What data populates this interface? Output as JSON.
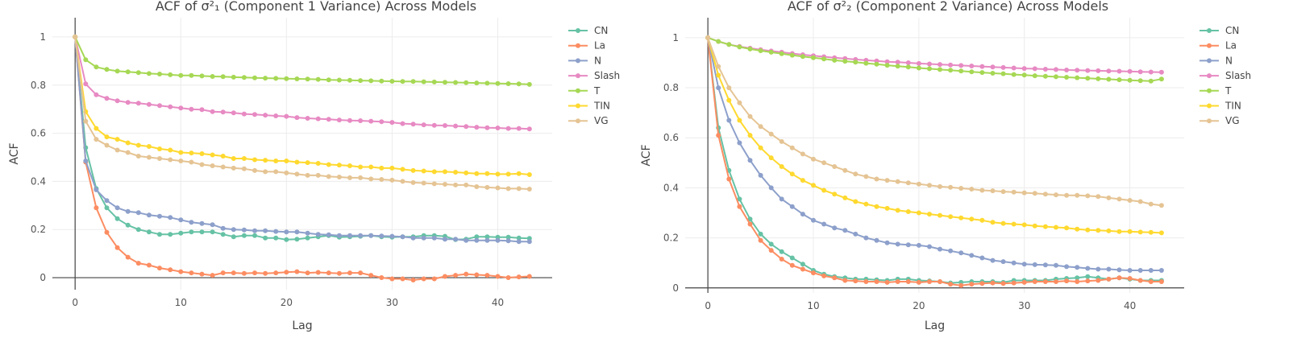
{
  "chart_data": [
    {
      "type": "line",
      "title": "ACF of σ²₁ (Component 1 Variance) Across Models",
      "xlabel": "Lag",
      "ylabel": "ACF",
      "xlim": [
        -2.15,
        45.15
      ],
      "ylim": [
        -0.05,
        1.08
      ],
      "x_ticks": [
        0,
        10,
        20,
        30,
        40
      ],
      "y_ticks": [
        0,
        0.2,
        0.4,
        0.6,
        0.8,
        1
      ],
      "y_tick_labels": [
        "0",
        "0.2",
        "0.4",
        "0.6",
        "0.8",
        "1"
      ],
      "grid": true,
      "legend_position": "right",
      "x": [
        0,
        1,
        2,
        3,
        4,
        5,
        6,
        7,
        8,
        9,
        10,
        11,
        12,
        13,
        14,
        15,
        16,
        17,
        18,
        19,
        20,
        21,
        22,
        23,
        24,
        25,
        26,
        27,
        28,
        29,
        30,
        31,
        32,
        33,
        34,
        35,
        36,
        37,
        38,
        39,
        40,
        41,
        42,
        43
      ],
      "series": [
        {
          "name": "CN",
          "color": "#66c2a5",
          "values": [
            1,
            0.54,
            0.37,
            0.29,
            0.245,
            0.218,
            0.2,
            0.19,
            0.18,
            0.18,
            0.185,
            0.19,
            0.19,
            0.19,
            0.18,
            0.17,
            0.175,
            0.175,
            0.165,
            0.165,
            0.158,
            0.16,
            0.165,
            0.17,
            0.175,
            0.168,
            0.17,
            0.172,
            0.175,
            0.17,
            0.168,
            0.17,
            0.17,
            0.175,
            0.175,
            0.172,
            0.158,
            0.16,
            0.17,
            0.17,
            0.168,
            0.168,
            0.165,
            0.163
          ]
        },
        {
          "name": "La",
          "color": "#fc8d62",
          "values": [
            1,
            0.48,
            0.29,
            0.188,
            0.125,
            0.085,
            0.06,
            0.052,
            0.04,
            0.033,
            0.025,
            0.02,
            0.015,
            0.01,
            0.02,
            0.02,
            0.018,
            0.02,
            0.018,
            0.02,
            0.023,
            0.025,
            0.02,
            0.022,
            0.02,
            0.018,
            0.02,
            0.02,
            0.01,
            0,
            -0.005,
            -0.005,
            -0.01,
            -0.005,
            -0.005,
            0.005,
            0.01,
            0.015,
            0.012,
            0.01,
            0.005,
            0,
            0.003,
            0.005
          ]
        },
        {
          "name": "N",
          "color": "#8da0cb",
          "values": [
            1,
            0.485,
            0.365,
            0.32,
            0.29,
            0.275,
            0.27,
            0.26,
            0.255,
            0.25,
            0.24,
            0.23,
            0.225,
            0.22,
            0.205,
            0.2,
            0.198,
            0.195,
            0.195,
            0.192,
            0.19,
            0.19,
            0.185,
            0.18,
            0.178,
            0.175,
            0.175,
            0.175,
            0.175,
            0.173,
            0.172,
            0.17,
            0.165,
            0.165,
            0.165,
            0.16,
            0.16,
            0.155,
            0.155,
            0.155,
            0.155,
            0.153,
            0.15,
            0.15
          ]
        },
        {
          "name": "Slash",
          "color": "#e78ac3",
          "values": [
            1,
            0.805,
            0.76,
            0.745,
            0.735,
            0.728,
            0.725,
            0.72,
            0.715,
            0.71,
            0.705,
            0.7,
            0.698,
            0.69,
            0.688,
            0.685,
            0.68,
            0.678,
            0.675,
            0.672,
            0.67,
            0.665,
            0.662,
            0.66,
            0.658,
            0.655,
            0.653,
            0.652,
            0.65,
            0.648,
            0.645,
            0.64,
            0.638,
            0.635,
            0.633,
            0.632,
            0.63,
            0.628,
            0.625,
            0.623,
            0.622,
            0.62,
            0.62,
            0.618
          ]
        },
        {
          "name": "T",
          "color": "#a6d854",
          "values": [
            1,
            0.905,
            0.875,
            0.865,
            0.858,
            0.855,
            0.852,
            0.848,
            0.846,
            0.843,
            0.84,
            0.84,
            0.838,
            0.836,
            0.835,
            0.833,
            0.832,
            0.83,
            0.829,
            0.828,
            0.827,
            0.826,
            0.825,
            0.824,
            0.822,
            0.821,
            0.82,
            0.819,
            0.818,
            0.817,
            0.816,
            0.815,
            0.815,
            0.814,
            0.813,
            0.812,
            0.811,
            0.81,
            0.809,
            0.808,
            0.807,
            0.806,
            0.805,
            0.803
          ]
        },
        {
          "name": "TIN",
          "color": "#ffd92f",
          "values": [
            1,
            0.69,
            0.62,
            0.585,
            0.575,
            0.56,
            0.55,
            0.545,
            0.535,
            0.53,
            0.52,
            0.518,
            0.515,
            0.51,
            0.505,
            0.495,
            0.495,
            0.49,
            0.488,
            0.485,
            0.485,
            0.48,
            0.478,
            0.475,
            0.47,
            0.468,
            0.465,
            0.46,
            0.46,
            0.455,
            0.455,
            0.45,
            0.445,
            0.443,
            0.44,
            0.44,
            0.438,
            0.435,
            0.432,
            0.432,
            0.43,
            0.43,
            0.432,
            0.428
          ]
        },
        {
          "name": "VG",
          "color": "#e5c494",
          "values": [
            1,
            0.65,
            0.575,
            0.55,
            0.53,
            0.52,
            0.505,
            0.5,
            0.495,
            0.49,
            0.485,
            0.48,
            0.47,
            0.465,
            0.46,
            0.455,
            0.452,
            0.445,
            0.44,
            0.44,
            0.435,
            0.43,
            0.425,
            0.425,
            0.42,
            0.418,
            0.415,
            0.415,
            0.41,
            0.408,
            0.405,
            0.4,
            0.395,
            0.393,
            0.39,
            0.388,
            0.385,
            0.385,
            0.378,
            0.375,
            0.373,
            0.37,
            0.37,
            0.368
          ]
        }
      ]
    },
    {
      "type": "line",
      "title": "ACF of σ²₂ (Component 2 Variance) Across Models",
      "xlabel": "Lag",
      "ylabel": "ACF",
      "xlim": [
        -2.15,
        45.15
      ],
      "ylim": [
        -0.02,
        1.08
      ],
      "x_ticks": [
        0,
        10,
        20,
        30,
        40
      ],
      "y_ticks": [
        0,
        0.2,
        0.4,
        0.6,
        0.8,
        1
      ],
      "y_tick_labels": [
        "0",
        "0.2",
        "0.4",
        "0.6",
        "0.8",
        "1"
      ],
      "grid": true,
      "legend_position": "right",
      "x": [
        0,
        1,
        2,
        3,
        4,
        5,
        6,
        7,
        8,
        9,
        10,
        11,
        12,
        13,
        14,
        15,
        16,
        17,
        18,
        19,
        20,
        21,
        22,
        23,
        24,
        25,
        26,
        27,
        28,
        29,
        30,
        31,
        32,
        33,
        34,
        35,
        36,
        37,
        38,
        39,
        40,
        41,
        42,
        43
      ],
      "series": [
        {
          "name": "CN",
          "color": "#66c2a5",
          "values": [
            1,
            0.64,
            0.47,
            0.355,
            0.275,
            0.215,
            0.175,
            0.145,
            0.12,
            0.095,
            0.07,
            0.055,
            0.045,
            0.04,
            0.035,
            0.035,
            0.032,
            0.03,
            0.035,
            0.035,
            0.03,
            0.028,
            0.025,
            0.02,
            0.022,
            0.025,
            0.025,
            0.025,
            0.022,
            0.03,
            0.03,
            0.03,
            0.03,
            0.035,
            0.038,
            0.04,
            0.045,
            0.04,
            0.035,
            0.04,
            0.035,
            0.03,
            0.03,
            0.03
          ]
        },
        {
          "name": "La",
          "color": "#fc8d62",
          "values": [
            1,
            0.61,
            0.435,
            0.325,
            0.255,
            0.19,
            0.15,
            0.115,
            0.09,
            0.075,
            0.06,
            0.048,
            0.04,
            0.03,
            0.028,
            0.025,
            0.025,
            0.022,
            0.025,
            0.025,
            0.022,
            0.025,
            0.025,
            0.015,
            0.01,
            0.015,
            0.018,
            0.02,
            0.018,
            0.02,
            0.022,
            0.025,
            0.025,
            0.025,
            0.028,
            0.025,
            0.028,
            0.03,
            0.035,
            0.04,
            0.038,
            0.03,
            0.025,
            0.025
          ]
        },
        {
          "name": "N",
          "color": "#8da0cb",
          "values": [
            1,
            0.8,
            0.67,
            0.58,
            0.51,
            0.45,
            0.4,
            0.355,
            0.325,
            0.295,
            0.27,
            0.255,
            0.24,
            0.23,
            0.215,
            0.2,
            0.19,
            0.18,
            0.175,
            0.172,
            0.17,
            0.165,
            0.155,
            0.148,
            0.14,
            0.13,
            0.12,
            0.11,
            0.105,
            0.1,
            0.095,
            0.093,
            0.092,
            0.09,
            0.085,
            0.082,
            0.078,
            0.075,
            0.075,
            0.072,
            0.07,
            0.07,
            0.07,
            0.07
          ]
        },
        {
          "name": "Slash",
          "color": "#e78ac3",
          "values": [
            1,
            0.985,
            0.973,
            0.965,
            0.958,
            0.952,
            0.947,
            0.942,
            0.937,
            0.932,
            0.928,
            0.924,
            0.92,
            0.917,
            0.913,
            0.91,
            0.907,
            0.904,
            0.902,
            0.9,
            0.897,
            0.895,
            0.893,
            0.891,
            0.889,
            0.887,
            0.885,
            0.883,
            0.881,
            0.879,
            0.877,
            0.876,
            0.874,
            0.873,
            0.871,
            0.87,
            0.869,
            0.868,
            0.867,
            0.866,
            0.865,
            0.864,
            0.863,
            0.862
          ]
        },
        {
          "name": "T",
          "color": "#a6d854",
          "values": [
            1,
            0.985,
            0.973,
            0.963,
            0.955,
            0.948,
            0.942,
            0.936,
            0.93,
            0.925,
            0.92,
            0.915,
            0.91,
            0.906,
            0.902,
            0.898,
            0.894,
            0.89,
            0.886,
            0.883,
            0.879,
            0.876,
            0.873,
            0.87,
            0.867,
            0.864,
            0.861,
            0.858,
            0.856,
            0.853,
            0.851,
            0.848,
            0.846,
            0.844,
            0.842,
            0.84,
            0.838,
            0.836,
            0.834,
            0.832,
            0.83,
            0.828,
            0.827,
            0.835
          ]
        },
        {
          "name": "TIN",
          "color": "#ffd92f",
          "values": [
            1,
            0.85,
            0.75,
            0.67,
            0.61,
            0.56,
            0.52,
            0.485,
            0.455,
            0.43,
            0.41,
            0.39,
            0.375,
            0.36,
            0.345,
            0.335,
            0.325,
            0.318,
            0.31,
            0.305,
            0.3,
            0.295,
            0.29,
            0.285,
            0.28,
            0.275,
            0.27,
            0.262,
            0.258,
            0.255,
            0.252,
            0.248,
            0.245,
            0.242,
            0.24,
            0.235,
            0.232,
            0.23,
            0.228,
            0.225,
            0.225,
            0.223,
            0.222,
            0.22
          ]
        },
        {
          "name": "VG",
          "color": "#e5c494",
          "values": [
            1,
            0.885,
            0.8,
            0.74,
            0.685,
            0.645,
            0.615,
            0.585,
            0.56,
            0.535,
            0.515,
            0.5,
            0.485,
            0.47,
            0.455,
            0.445,
            0.435,
            0.43,
            0.425,
            0.42,
            0.415,
            0.41,
            0.405,
            0.402,
            0.398,
            0.395,
            0.39,
            0.388,
            0.385,
            0.383,
            0.38,
            0.378,
            0.375,
            0.372,
            0.37,
            0.37,
            0.368,
            0.365,
            0.36,
            0.355,
            0.35,
            0.345,
            0.335,
            0.33
          ]
        }
      ]
    }
  ]
}
